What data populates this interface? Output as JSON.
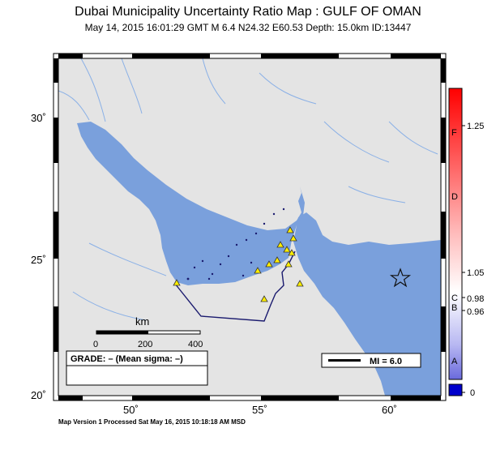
{
  "header": {
    "title": "Dubai Municipality Uncertainty Ratio Map : GULF OF OMAN",
    "subtitle": "May 14, 2015 16:01:29 GMT   M 6.4   N24.32 E60.53   Depth: 15.0km   ID:13447"
  },
  "footer": {
    "text": "Map Version 1 Processed Sat May 16, 2015 10:18:18 AM MSD"
  },
  "map": {
    "lat_labels": [
      "30˚",
      "25˚",
      "20˚"
    ],
    "lon_labels": [
      "50˚",
      "55˚",
      "60˚"
    ],
    "land_color": "#e4e4e4",
    "water_color": "#7aa0dc",
    "epicenter_icon": "star-icon",
    "station_icon": "triangle-icon"
  },
  "scalebar": {
    "unit": "km",
    "ticks": [
      "0",
      "200",
      "400"
    ]
  },
  "grade_box": {
    "text": "GRADE: – (Mean sigma: –)"
  },
  "mi_legend": {
    "text": "MI = 6.0"
  },
  "colorbar": {
    "letters": [
      "F",
      "D",
      "C",
      "B",
      "A"
    ],
    "values": [
      "1.25",
      "1.05",
      "0.98",
      "0.96",
      "0"
    ],
    "top_color": "#ff0000",
    "bottom_color": "#0000cc"
  }
}
